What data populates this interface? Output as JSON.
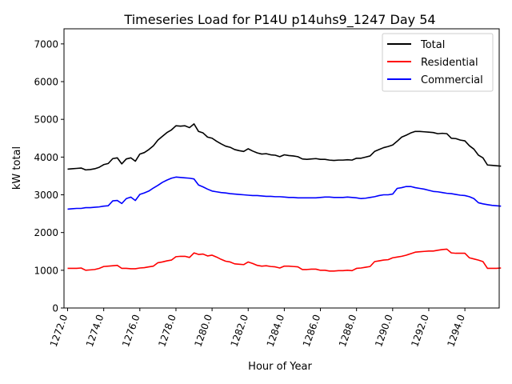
{
  "chart_data": {
    "type": "line",
    "title": "Timeseries Load for P14U p14uhs9_1247  Day 54",
    "xlabel": "Hour of Year",
    "ylabel": "kW total",
    "xlim": [
      1271.8,
      1295.9
    ],
    "ylim": [
      0,
      7400
    ],
    "x_ticks": [
      1272,
      1274,
      1276,
      1278,
      1280,
      1282,
      1284,
      1286,
      1288,
      1290,
      1292,
      1294
    ],
    "x_tick_labels": [
      "1272.0",
      "1274.0",
      "1276.0",
      "1278.0",
      "1280.0",
      "1282.0",
      "1284.0",
      "1286.0",
      "1288.0",
      "1290.0",
      "1292.0",
      "1294.0"
    ],
    "y_ticks": [
      0,
      1000,
      2000,
      3000,
      4000,
      5000,
      6000,
      7000
    ],
    "y_tick_labels": [
      "0",
      "1000",
      "2000",
      "3000",
      "4000",
      "5000",
      "6000",
      "7000"
    ],
    "legend_position": "top-right",
    "x_start": 1272.0,
    "x_step": 0.25,
    "series": [
      {
        "name": "Total",
        "color": "#000000",
        "values": [
          3680,
          3690,
          3700,
          3710,
          3660,
          3670,
          3690,
          3730,
          3800,
          3830,
          3960,
          3980,
          3820,
          3950,
          3980,
          3890,
          4080,
          4120,
          4200,
          4300,
          4450,
          4550,
          4650,
          4720,
          4830,
          4820,
          4830,
          4780,
          4880,
          4680,
          4640,
          4530,
          4500,
          4420,
          4350,
          4290,
          4260,
          4200,
          4170,
          4150,
          4220,
          4160,
          4110,
          4080,
          4090,
          4060,
          4050,
          4010,
          4060,
          4040,
          4030,
          4010,
          3950,
          3940,
          3950,
          3960,
          3940,
          3940,
          3920,
          3910,
          3920,
          3920,
          3930,
          3920,
          3970,
          3970,
          4000,
          4030,
          4150,
          4200,
          4250,
          4280,
          4320,
          4420,
          4530,
          4580,
          4640,
          4680,
          4680,
          4670,
          4660,
          4650,
          4620,
          4630,
          4620,
          4500,
          4490,
          4450,
          4430,
          4300,
          4210,
          4050,
          3980,
          3790,
          3780,
          3770,
          3760
        ]
      },
      {
        "name": "Residential",
        "color": "#ff0000",
        "values": [
          1050,
          1050,
          1050,
          1060,
          1000,
          1010,
          1020,
          1050,
          1100,
          1110,
          1120,
          1130,
          1050,
          1050,
          1040,
          1040,
          1060,
          1070,
          1090,
          1110,
          1200,
          1220,
          1250,
          1270,
          1360,
          1370,
          1370,
          1340,
          1460,
          1420,
          1430,
          1380,
          1400,
          1350,
          1290,
          1240,
          1220,
          1170,
          1160,
          1150,
          1220,
          1180,
          1130,
          1110,
          1120,
          1100,
          1090,
          1060,
          1110,
          1110,
          1100,
          1090,
          1020,
          1020,
          1030,
          1030,
          1000,
          1000,
          980,
          980,
          990,
          990,
          1000,
          990,
          1050,
          1060,
          1080,
          1100,
          1230,
          1250,
          1270,
          1280,
          1330,
          1350,
          1370,
          1400,
          1440,
          1480,
          1490,
          1500,
          1510,
          1510,
          1530,
          1550,
          1560,
          1460,
          1450,
          1450,
          1450,
          1330,
          1300,
          1270,
          1230,
          1050,
          1050,
          1050,
          1060
        ]
      },
      {
        "name": "Commercial",
        "color": "#0000ff",
        "values": [
          2620,
          2630,
          2640,
          2640,
          2660,
          2660,
          2670,
          2680,
          2700,
          2710,
          2840,
          2850,
          2770,
          2900,
          2940,
          2850,
          3010,
          3050,
          3100,
          3180,
          3250,
          3330,
          3390,
          3440,
          3470,
          3460,
          3450,
          3440,
          3420,
          3260,
          3210,
          3150,
          3100,
          3080,
          3060,
          3050,
          3030,
          3020,
          3010,
          3000,
          2990,
          2980,
          2980,
          2970,
          2960,
          2960,
          2950,
          2950,
          2940,
          2930,
          2930,
          2920,
          2920,
          2920,
          2920,
          2920,
          2930,
          2940,
          2940,
          2930,
          2930,
          2930,
          2940,
          2930,
          2920,
          2900,
          2910,
          2930,
          2950,
          2980,
          3000,
          3000,
          3020,
          3170,
          3190,
          3220,
          3220,
          3190,
          3170,
          3150,
          3120,
          3090,
          3080,
          3060,
          3040,
          3030,
          3010,
          2990,
          2980,
          2950,
          2900,
          2790,
          2760,
          2740,
          2720,
          2710,
          2700
        ]
      }
    ]
  }
}
